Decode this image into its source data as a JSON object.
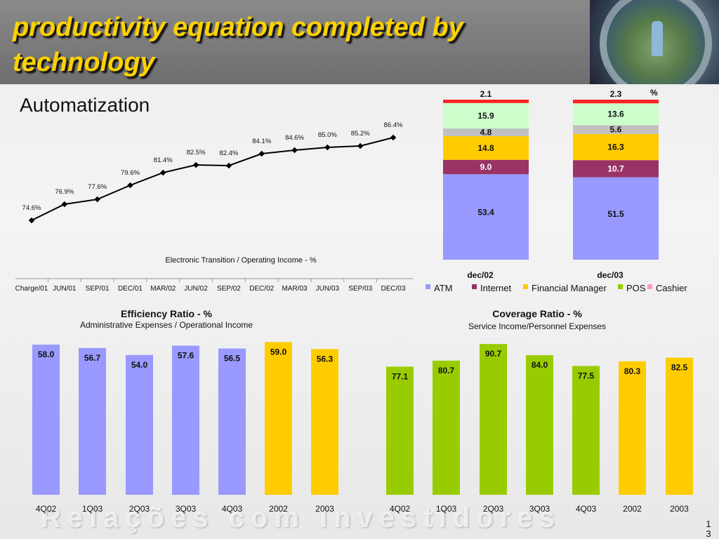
{
  "slide": {
    "title": "productivity equation completed by technology",
    "sub_heading": "Automatization",
    "watermark": "Relações com Investidores",
    "page_number": "13"
  },
  "chart_data": [
    {
      "id": "automatization",
      "type": "line",
      "title": "",
      "xlabel": "Electronic Transition / Operating Income - %",
      "ylabel": "",
      "categories": [
        "Charge/01",
        "JUN/01",
        "SEP/01",
        "DEC/01",
        "MAR/02",
        "JUN/02",
        "SEP/02",
        "DEC/02",
        "MAR/03",
        "JUN/03",
        "SEP/03",
        "DEC/03"
      ],
      "values": [
        74.6,
        76.9,
        77.6,
        79.6,
        81.4,
        82.5,
        82.4,
        84.1,
        84.6,
        85.0,
        85.2,
        86.4
      ],
      "value_labels": [
        "74.6%",
        "76.9%",
        "77.6%",
        "79.6%",
        "81.4%",
        "82.5%",
        "82.4%",
        "84.1%",
        "84.6%",
        "85.0%",
        "85.2%",
        "86.4%"
      ],
      "ylim": [
        72,
        90
      ],
      "grid": false,
      "line_color": "#000000"
    },
    {
      "id": "channel-mix",
      "type": "bar",
      "stacked": true,
      "unit_label": "%",
      "categories": [
        "dec/02",
        "dec/03"
      ],
      "series": [
        {
          "name": "ATM",
          "color": "#9999ff",
          "values": [
            53.4,
            51.5
          ]
        },
        {
          "name": "Internet",
          "color": "#993366",
          "values": [
            9.0,
            10.7
          ]
        },
        {
          "name": "Financial Manager",
          "color": "#ffcc00",
          "values": [
            14.8,
            16.3
          ]
        },
        {
          "name": "",
          "color": "#c0c0c0",
          "values": [
            4.8,
            5.6
          ]
        },
        {
          "name": "POS",
          "color": "#ccffcc",
          "values": [
            15.9,
            13.6
          ]
        },
        {
          "name": "Cashier",
          "color": "#ff2222",
          "values": [
            2.1,
            2.3
          ]
        }
      ],
      "value_labels": [
        [
          "53.4",
          "9.0",
          "14.8",
          "4.8",
          "15.9",
          "2.1"
        ],
        [
          "51.5",
          "10.7",
          "16.3",
          "5.6",
          "13.6",
          "2.3"
        ]
      ],
      "legend": [
        {
          "name": "ATM",
          "color": "#9999ff"
        },
        {
          "name": "Internet",
          "color": "#993366"
        },
        {
          "name": "Financial Manager",
          "color": "#ffcc00"
        },
        {
          "name": "POS",
          "color": "#99cc00"
        },
        {
          "name": "Cashier",
          "color": "#ff99cc"
        }
      ],
      "legend_placement": "bottom",
      "ylim": [
        0,
        100
      ]
    },
    {
      "id": "efficiency-ratio",
      "type": "bar",
      "title": "Efficiency Ratio - %",
      "subtitle": "Administrative Expenses / Operational Income",
      "categories": [
        "4Q02",
        "1Q03",
        "2Q03",
        "3Q03",
        "4Q03",
        "2002",
        "2003"
      ],
      "values": [
        58.0,
        56.7,
        54.0,
        57.6,
        56.5,
        59.0,
        56.3
      ],
      "value_labels": [
        "58.0",
        "56.7",
        "54.0",
        "57.6",
        "56.5",
        "59.0",
        "56.3"
      ],
      "colors": [
        "#9999ff",
        "#9999ff",
        "#9999ff",
        "#9999ff",
        "#9999ff",
        "#ffcc00",
        "#ffcc00"
      ],
      "ylim": [
        0,
        61
      ]
    },
    {
      "id": "coverage-ratio",
      "type": "bar",
      "title": "Coverage Ratio - %",
      "subtitle": "Service Income/Personnel Expenses",
      "categories": [
        "4Q02",
        "1Q03",
        "2Q03",
        "3Q03",
        "4Q03",
        "2002",
        "2003"
      ],
      "values": [
        77.1,
        80.7,
        90.7,
        84.0,
        77.5,
        80.3,
        82.5
      ],
      "value_labels": [
        "77.1",
        "80.7",
        "90.7",
        "84.0",
        "77.5",
        "80.3",
        "82.5"
      ],
      "colors": [
        "#99cc00",
        "#99cc00",
        "#99cc00",
        "#99cc00",
        "#99cc00",
        "#ffcc00",
        "#ffcc00"
      ],
      "ylim": [
        0,
        95
      ]
    }
  ]
}
